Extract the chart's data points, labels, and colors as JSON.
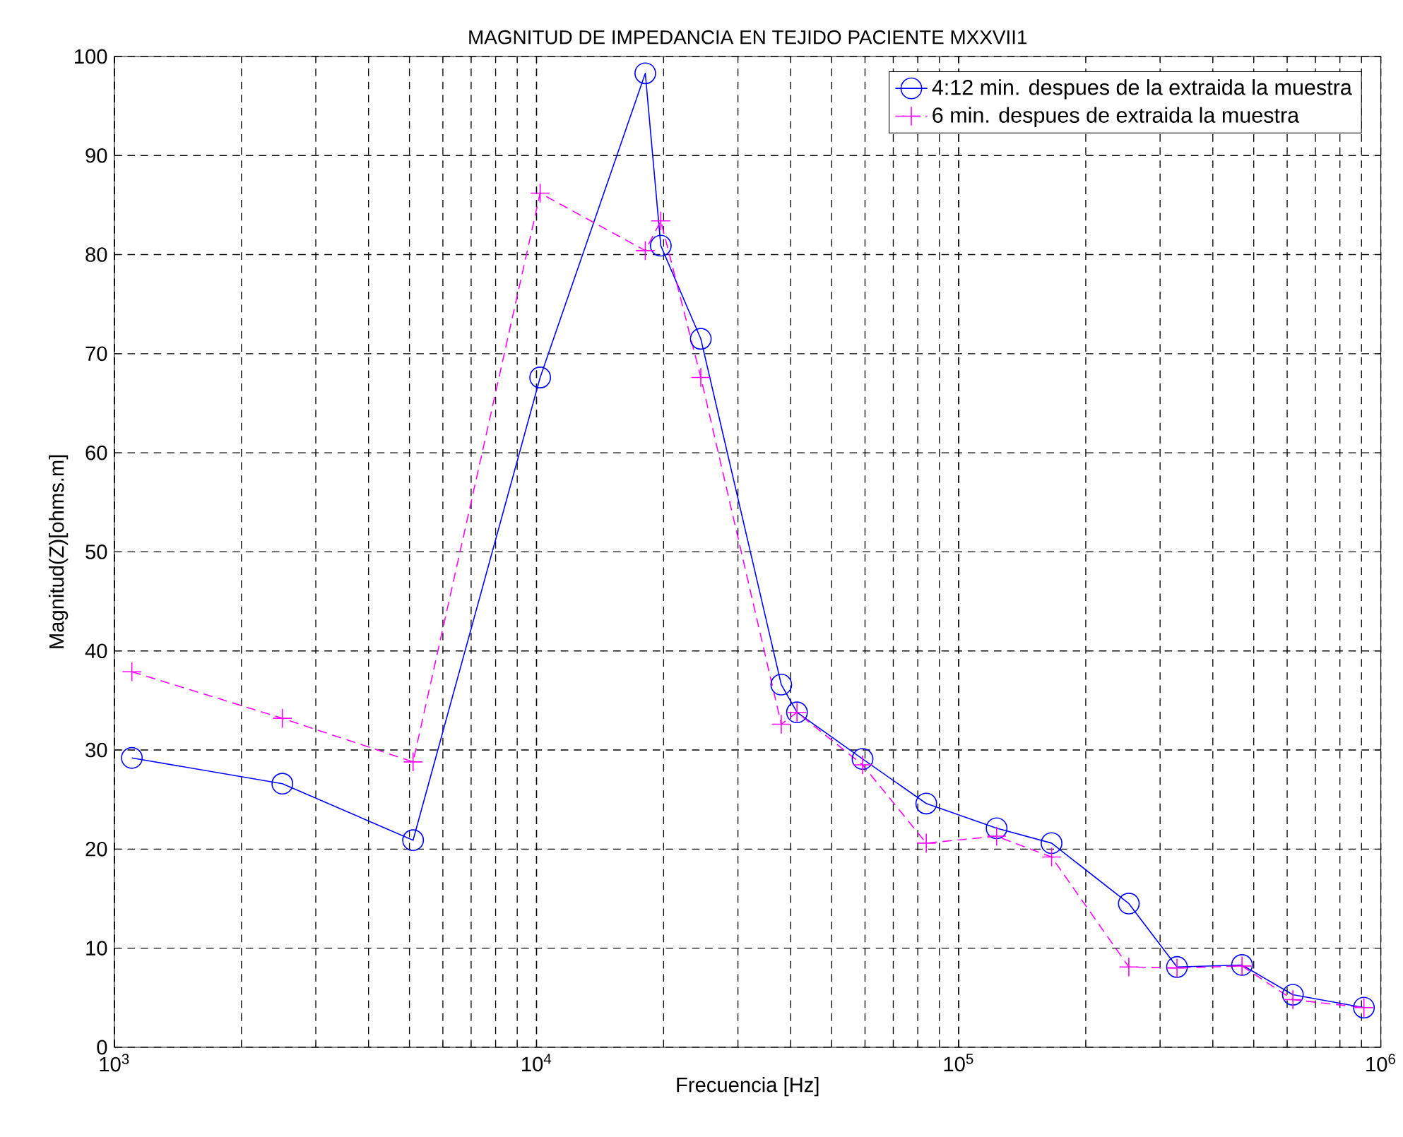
{
  "chart_data": {
    "type": "line",
    "title": "MAGNITUD DE IMPEDANCIA EN TEJIDO PACIENTE MXXVII1",
    "xlabel": "Frecuencia [Hz]",
    "ylabel": "Magnitud(Z)[ohms.m]",
    "x": [
      1100,
      2500,
      5100,
      10200,
      18100,
      19700,
      24500,
      38000,
      41400,
      59200,
      83800,
      123000,
      166000,
      253000,
      329000,
      469000,
      619000,
      912000
    ],
    "series": [
      {
        "name": "4:12 min. despues de la extraida la muestra",
        "color": "#0000ff",
        "marker": "circle",
        "line_style": "solid",
        "values": [
          29.2,
          26.6,
          20.9,
          67.6,
          98.3,
          80.9,
          71.5,
          36.6,
          33.8,
          29.1,
          24.6,
          22.1,
          20.6,
          14.5,
          8.1,
          8.3,
          5.3,
          4.0
        ]
      },
      {
        "name": "6 min. despues de extraida la muestra",
        "color": "#ff00ff",
        "marker": "cross",
        "line_style": "dashed",
        "values": [
          37.9,
          33.2,
          28.8,
          86.2,
          80.4,
          83.4,
          67.6,
          32.6,
          33.8,
          28.5,
          20.6,
          21.3,
          19.2,
          8.1,
          8.0,
          8.2,
          4.8,
          4.0
        ]
      }
    ],
    "log": "x",
    "xlim": [
      1000,
      1000000
    ],
    "ylim": [
      0,
      100
    ],
    "xticks": [
      {
        "value": 1000,
        "label": "10$^{3}$"
      },
      {
        "value": 10000,
        "label": "10$^{4}$"
      },
      {
        "value": 100000,
        "label": "10$^{5}$"
      },
      {
        "value": 1000000,
        "label": "10$^{6}$"
      }
    ],
    "yticks": [
      0,
      10,
      20,
      30,
      40,
      50,
      60,
      70,
      80,
      90,
      100
    ],
    "grid": true,
    "legend": "top right"
  }
}
